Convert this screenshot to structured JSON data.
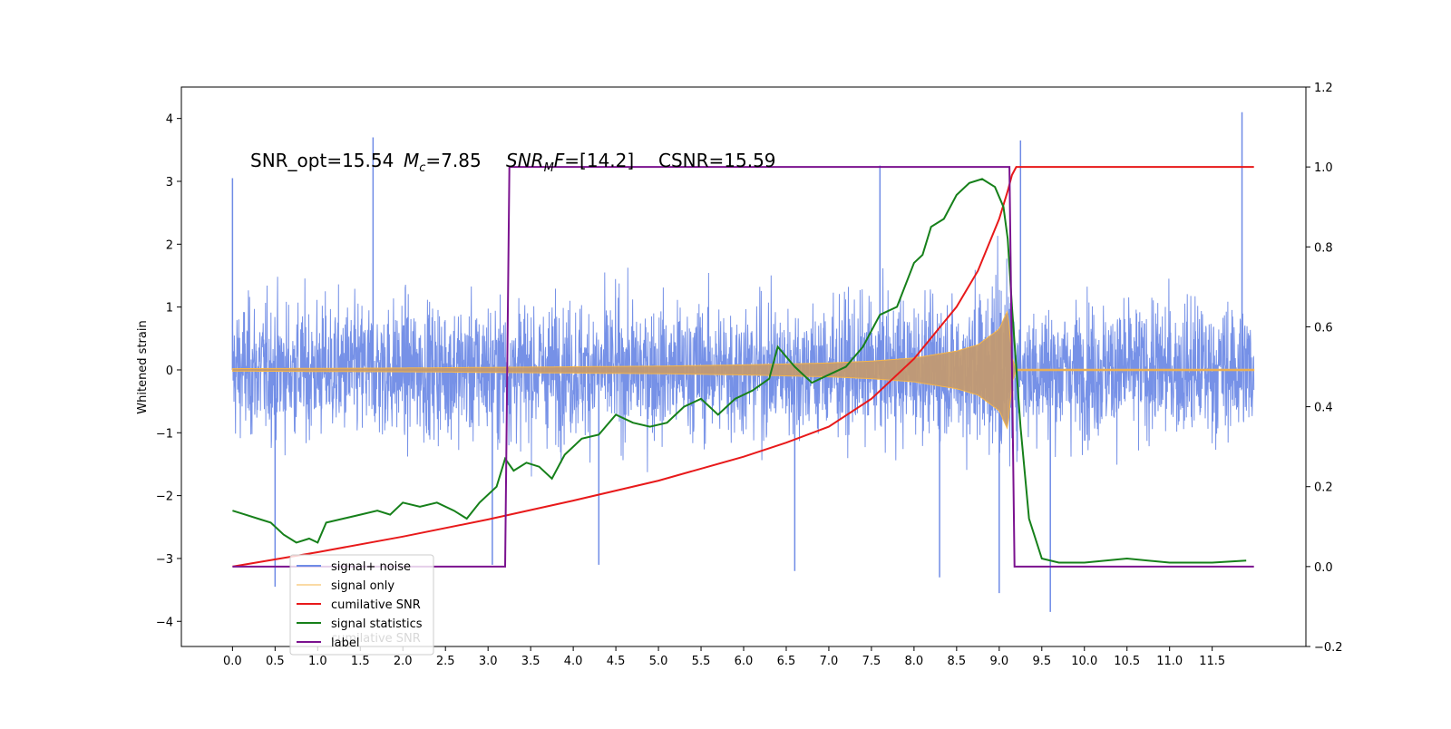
{
  "chart_data": {
    "type": "line",
    "title": "",
    "ylabel": "Whitened strain",
    "y2label": "",
    "xlim": [
      -0.6,
      12.6
    ],
    "ylim": [
      -4.4,
      4.5
    ],
    "y2lim": [
      -0.2,
      1.2
    ],
    "x_ticks": [
      "0.0",
      "0.5",
      "1.0",
      "1.5",
      "2.0",
      "2.5",
      "3.0",
      "3.5",
      "4.0",
      "4.5",
      "5.0",
      "5.5",
      "6.0",
      "6.5",
      "7.0",
      "7.5",
      "8.0",
      "8.5",
      "9.0",
      "9.5",
      "10.0",
      "10.5",
      "11.0",
      "11.5"
    ],
    "y_ticks": [
      "4",
      "3",
      "2",
      "1",
      "0",
      "−1",
      "−2",
      "−3",
      "−4"
    ],
    "y2_ticks": [
      "1.2",
      "1.0",
      "0.8",
      "0.6",
      "0.4",
      "0.2",
      "0.0",
      "−0.2"
    ],
    "annotation": {
      "snr_opt": "SNR_opt=15.54",
      "mc_symbol": "M",
      "mc_sub": "c",
      "mc_value": "=7.85",
      "snr_mf_symbol": "SNR",
      "snr_mf_sub": "M",
      "snr_mf_tail": "F",
      "snr_mf_value": "=[14.2]",
      "csnr": "CSNR=15.59"
    },
    "legend": {
      "position": "lower-left",
      "entries": [
        "signal+ noise",
        "signal only",
        "cumilative SNR",
        "signal statistics",
        "label"
      ],
      "ghost_text": "cumilative SNR"
    },
    "colors": {
      "noise": "#6f8be6",
      "signal": "#f6b64a",
      "cumulative": "#e8191a",
      "statistics": "#16801a",
      "label": "#7b128f"
    },
    "series": [
      {
        "name": "signal+ noise",
        "axis": "left",
        "x_range": [
          0.0,
          11.99
        ],
        "envelope_typical": 2.2,
        "spikes": [
          [
            0.0,
            3.05
          ],
          [
            0.5,
            -3.45
          ],
          [
            1.65,
            3.7
          ],
          [
            3.05,
            -3.1
          ],
          [
            4.3,
            -3.1
          ],
          [
            6.6,
            -3.2
          ],
          [
            7.6,
            3.25
          ],
          [
            8.3,
            -3.3
          ],
          [
            9.0,
            -3.55
          ],
          [
            9.25,
            3.65
          ],
          [
            9.6,
            -3.85
          ],
          [
            11.85,
            4.1
          ]
        ]
      },
      {
        "name": "signal only",
        "axis": "left",
        "x": [
          0,
          1,
          2,
          3,
          4,
          5,
          6,
          7,
          7.5,
          8,
          8.5,
          8.75,
          9.0,
          9.1,
          9.15,
          9.2,
          12
        ],
        "amplitude": [
          0.02,
          0.025,
          0.03,
          0.04,
          0.05,
          0.06,
          0.08,
          0.11,
          0.14,
          0.19,
          0.3,
          0.4,
          0.65,
          0.95,
          0.2,
          0.01,
          0.01
        ]
      },
      {
        "name": "cumilative SNR",
        "axis": "right",
        "x": [
          0,
          1,
          2,
          3,
          4,
          5,
          6,
          6.5,
          7,
          7.5,
          8,
          8.5,
          8.75,
          9.0,
          9.1,
          9.15,
          9.2,
          11.99
        ],
        "values": [
          0.0,
          0.036,
          0.075,
          0.118,
          0.165,
          0.215,
          0.275,
          0.31,
          0.35,
          0.42,
          0.52,
          0.65,
          0.74,
          0.87,
          0.94,
          0.98,
          1.0,
          1.0
        ]
      },
      {
        "name": "signal statistics",
        "axis": "right",
        "x": [
          0,
          0.15,
          0.3,
          0.45,
          0.6,
          0.75,
          0.9,
          1.0,
          1.1,
          1.3,
          1.5,
          1.7,
          1.85,
          2.0,
          2.2,
          2.4,
          2.6,
          2.75,
          2.9,
          3.1,
          3.2,
          3.3,
          3.45,
          3.6,
          3.75,
          3.9,
          4.1,
          4.3,
          4.5,
          4.7,
          4.9,
          5.1,
          5.3,
          5.5,
          5.7,
          5.9,
          6.1,
          6.3,
          6.4,
          6.6,
          6.8,
          7.0,
          7.2,
          7.4,
          7.6,
          7.8,
          8.0,
          8.1,
          8.2,
          8.35,
          8.5,
          8.65,
          8.8,
          8.95,
          9.05,
          9.1,
          9.15,
          9.25,
          9.35,
          9.5,
          9.7,
          10.0,
          10.5,
          11.0,
          11.5,
          11.9
        ],
        "values": [
          0.14,
          0.13,
          0.12,
          0.11,
          0.08,
          0.06,
          0.07,
          0.06,
          0.11,
          0.12,
          0.13,
          0.14,
          0.13,
          0.16,
          0.15,
          0.16,
          0.14,
          0.12,
          0.16,
          0.2,
          0.27,
          0.24,
          0.26,
          0.25,
          0.22,
          0.28,
          0.32,
          0.33,
          0.38,
          0.36,
          0.35,
          0.36,
          0.4,
          0.42,
          0.38,
          0.42,
          0.44,
          0.47,
          0.55,
          0.5,
          0.46,
          0.48,
          0.5,
          0.55,
          0.63,
          0.65,
          0.76,
          0.78,
          0.85,
          0.87,
          0.93,
          0.96,
          0.97,
          0.95,
          0.9,
          0.82,
          0.65,
          0.35,
          0.12,
          0.02,
          0.01,
          0.01,
          0.02,
          0.01,
          0.01,
          0.015
        ]
      },
      {
        "name": "label",
        "axis": "right",
        "x": [
          0,
          3.2,
          3.25,
          9.12,
          9.18,
          11.99
        ],
        "values": [
          0.0,
          0.0,
          1.0,
          1.0,
          0.0,
          0.0
        ]
      }
    ]
  }
}
